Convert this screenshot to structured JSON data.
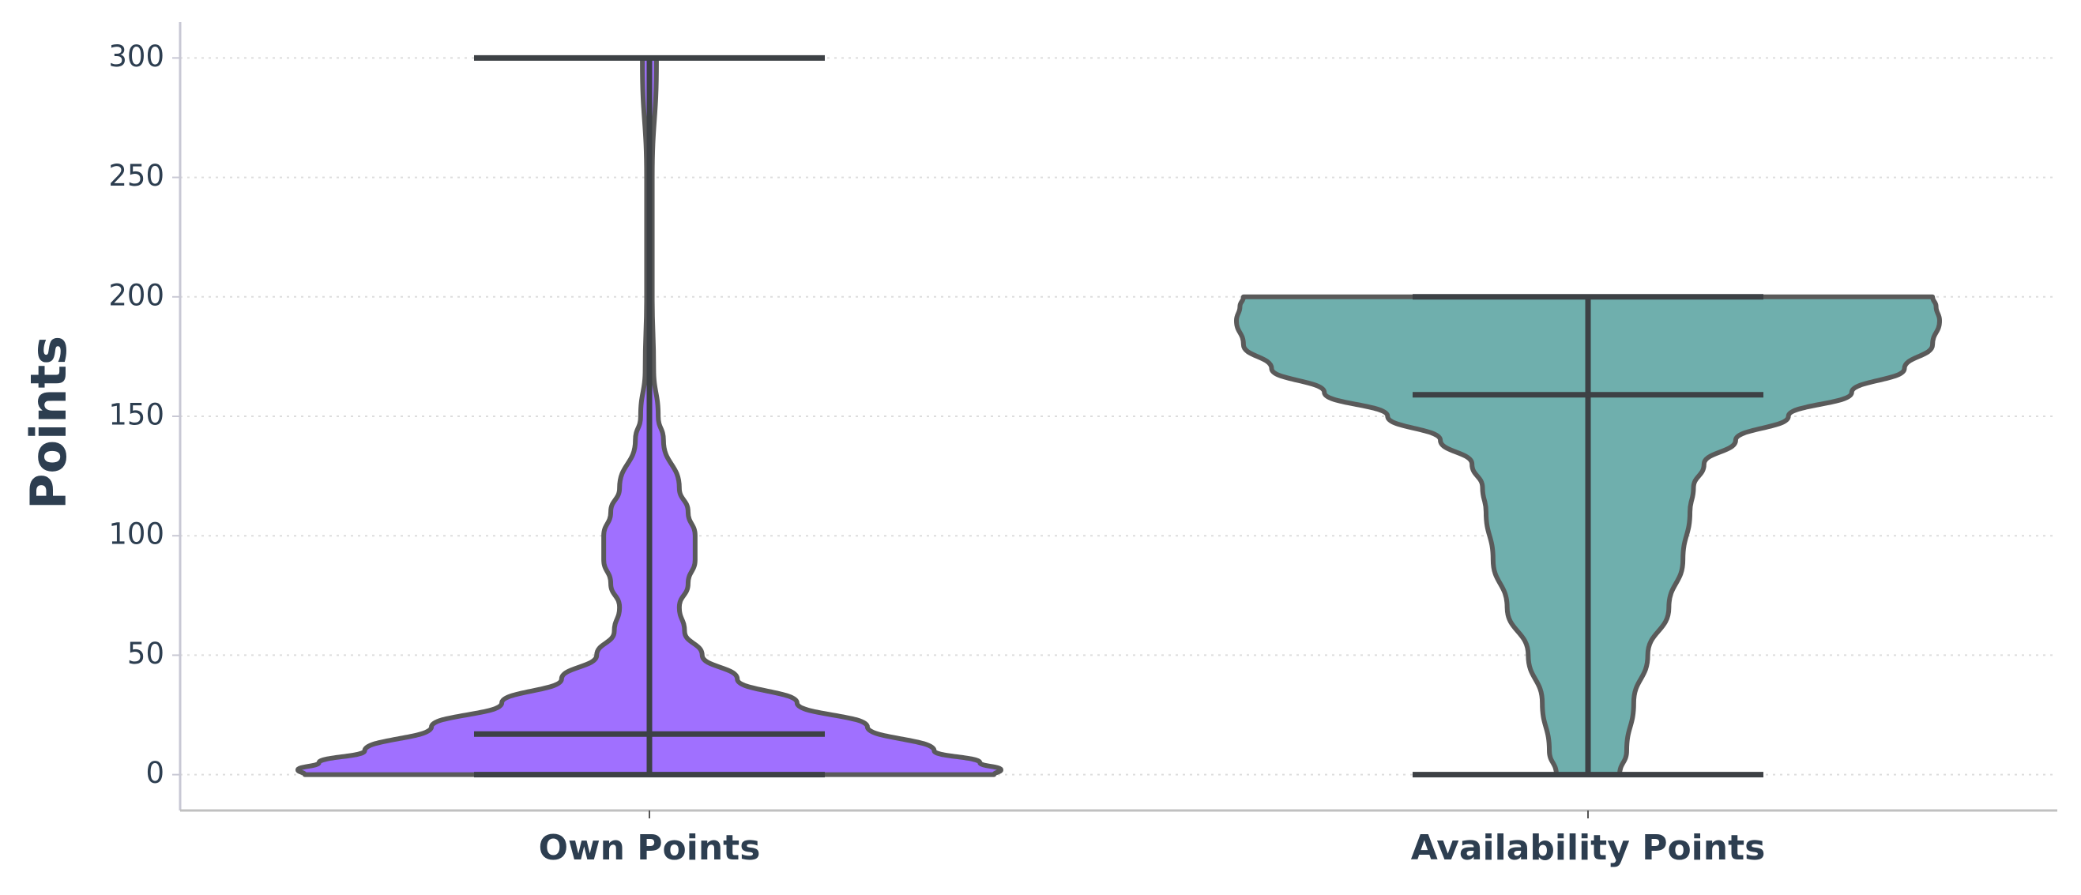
{
  "chart_data": {
    "type": "violin",
    "y_label": "Points",
    "categories": [
      "Own Points",
      "Availability Points"
    ],
    "ylim": [
      -15,
      315
    ],
    "yticks": [
      0,
      50,
      100,
      150,
      200,
      250,
      300
    ],
    "grid": true,
    "violins": [
      {
        "color": "#a070ff",
        "min": 0,
        "max": 300,
        "median": 17,
        "density_y": [
          0,
          2,
          5,
          10,
          20,
          30,
          40,
          50,
          60,
          70,
          80,
          90,
          100,
          110,
          120,
          140,
          150,
          170,
          200,
          250,
          298,
          300
        ],
        "density_width": [
          0.98,
          1.0,
          0.94,
          0.81,
          0.62,
          0.42,
          0.25,
          0.15,
          0.1,
          0.085,
          0.11,
          0.13,
          0.13,
          0.11,
          0.085,
          0.04,
          0.025,
          0.012,
          0.008,
          0.008,
          0.02,
          0.02
        ]
      },
      {
        "color": "#6fafad",
        "min": 0,
        "max": 200,
        "median": 159,
        "density_y": [
          0,
          10,
          30,
          50,
          70,
          90,
          110,
          120,
          130,
          140,
          150,
          160,
          170,
          180,
          190,
          196,
          200
        ],
        "density_width": [
          0.09,
          0.11,
          0.13,
          0.17,
          0.23,
          0.27,
          0.29,
          0.3,
          0.33,
          0.42,
          0.57,
          0.75,
          0.9,
          0.98,
          1.0,
          0.99,
          0.98
        ]
      }
    ]
  }
}
